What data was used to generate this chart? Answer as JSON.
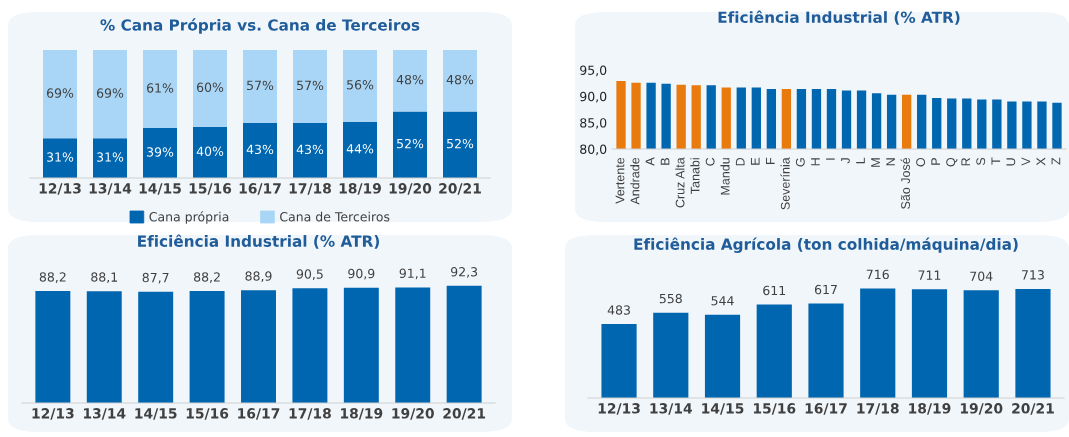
{
  "chart_data": [
    {
      "type": "bar",
      "title": "% Cana Própria vs. Cana de Terceiros",
      "categories": [
        "12/13",
        "13/14",
        "14/15",
        "15/16",
        "16/17",
        "17/18",
        "18/19",
        "19/20",
        "20/21"
      ],
      "stacked": true,
      "ylim": [
        0,
        100
      ],
      "legend": "bottom",
      "series": [
        {
          "name": "Cana própria",
          "color": "#0066b0",
          "values": [
            31,
            31,
            39,
            40,
            43,
            43,
            44,
            52,
            52
          ],
          "value_labels": [
            "31%",
            "31%",
            "39%",
            "40%",
            "43%",
            "43%",
            "44%",
            "52%",
            "52%"
          ]
        },
        {
          "name": "Cana de Terceiros",
          "color": "#a9d6f7",
          "values": [
            69,
            69,
            61,
            60,
            57,
            57,
            56,
            48,
            48
          ],
          "value_labels": [
            "69%",
            "69%",
            "61%",
            "60%",
            "57%",
            "57%",
            "56%",
            "48%",
            "48%"
          ]
        }
      ]
    },
    {
      "type": "bar",
      "title": "Eficiência Industrial (% ATR)",
      "categories": [
        "Vertente",
        "Andrade",
        "A",
        "B",
        "Cruz Alta",
        "Tanabi",
        "C",
        "Mandu",
        "D",
        "E",
        "F",
        "Severínia",
        "G",
        "H",
        "I",
        "J",
        "L",
        "M",
        "N",
        "São José",
        "O",
        "P",
        "Q",
        "R",
        "S",
        "T",
        "U",
        "V",
        "X",
        "Z"
      ],
      "values": [
        92.9,
        92.6,
        92.6,
        92.4,
        92.2,
        92.1,
        92.1,
        91.7,
        91.7,
        91.7,
        91.4,
        91.4,
        91.4,
        91.4,
        91.4,
        91.1,
        91.1,
        90.6,
        90.3,
        90.3,
        90.3,
        89.7,
        89.6,
        89.6,
        89.4,
        89.4,
        89.0,
        89.0,
        89.0,
        88.8
      ],
      "colors": [
        "#e87a0e",
        "#e87a0e",
        "#0066b0",
        "#0066b0",
        "#e87a0e",
        "#e87a0e",
        "#0066b0",
        "#e87a0e",
        "#0066b0",
        "#0066b0",
        "#0066b0",
        "#e87a0e",
        "#0066b0",
        "#0066b0",
        "#0066b0",
        "#0066b0",
        "#0066b0",
        "#0066b0",
        "#0066b0",
        "#e87a0e",
        "#0066b0",
        "#0066b0",
        "#0066b0",
        "#0066b0",
        "#0066b0",
        "#0066b0",
        "#0066b0",
        "#0066b0",
        "#0066b0",
        "#0066b0"
      ],
      "ylim": [
        80,
        95
      ],
      "yticks": [
        {
          "value": 80,
          "label": "80,0"
        },
        {
          "value": 85,
          "label": "85,0"
        },
        {
          "value": 90,
          "label": "90,0"
        },
        {
          "value": 95,
          "label": "95,0"
        }
      ]
    },
    {
      "type": "bar",
      "title": "Eficiência Industrial (% ATR)",
      "categories": [
        "12/13",
        "13/14",
        "14/15",
        "15/16",
        "16/17",
        "17/18",
        "18/19",
        "19/20",
        "20/21"
      ],
      "color": "#0066b0",
      "values": [
        88.2,
        88.1,
        87.7,
        88.2,
        88.9,
        90.5,
        90.9,
        91.1,
        92.3
      ],
      "value_labels": [
        "88,2",
        "88,1",
        "87,7",
        "88,2",
        "88,9",
        "90,5",
        "90,9",
        "91,1",
        "92,3"
      ],
      "tick_labels": "x"
    },
    {
      "type": "bar",
      "title": "Eficiência Agrícola (ton colhida/máquina/dia)",
      "categories": [
        "12/13",
        "13/14",
        "14/15",
        "15/16",
        "16/17",
        "17/18",
        "18/19",
        "19/20",
        "20/21"
      ],
      "color": "#0066b0",
      "values": [
        483,
        558,
        544,
        611,
        617,
        716,
        711,
        704,
        713
      ],
      "data_labels": true,
      "tick_labels": "x"
    }
  ]
}
